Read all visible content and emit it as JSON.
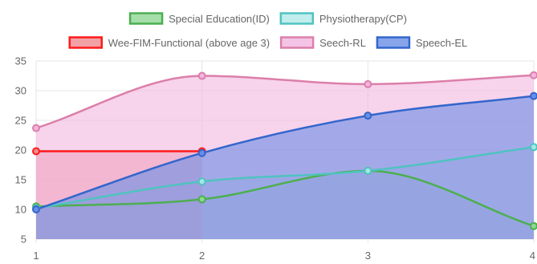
{
  "chart_data": {
    "type": "area",
    "x": [
      1,
      2,
      3,
      4
    ],
    "xlim": [
      1,
      4
    ],
    "ylim": [
      5,
      35
    ],
    "x_ticks": [
      1,
      2,
      3,
      4
    ],
    "y_ticks": [
      5,
      10,
      15,
      20,
      25,
      30,
      35
    ],
    "grid": true,
    "legend_position": "top",
    "series": [
      {
        "name": "Special Education(ID)",
        "values": [
          10.5,
          11.7,
          16.5,
          7.2
        ],
        "border_color": "#4caf50",
        "fill_color": "#8fd694",
        "fill_opacity": 0.6
      },
      {
        "name": "Physiotherapy(CP)",
        "values": [
          10.2,
          14.7,
          16.5,
          20.5
        ],
        "border_color": "#4fc3c0",
        "fill_color": "#a6e7e6",
        "fill_opacity": 0.5
      },
      {
        "name": "Wee-FIM-Functional (above age 3)",
        "values": [
          19.8,
          19.8,
          null,
          null
        ],
        "border_color": "#ff1a1a",
        "fill_color": "#ef8a8f",
        "fill_opacity": 0.6
      },
      {
        "name": "Seech-RL",
        "values": [
          23.7,
          32.5,
          31.1,
          32.6
        ],
        "border_color": "#dc7fa9",
        "fill_color": "#f1b5e0",
        "fill_opacity": 0.6
      },
      {
        "name": "Speech-EL",
        "values": [
          10.0,
          19.5,
          25.8,
          29.1
        ],
        "border_color": "#3366cc",
        "fill_color": "#6a8ee6",
        "fill_opacity": 0.6
      }
    ]
  }
}
